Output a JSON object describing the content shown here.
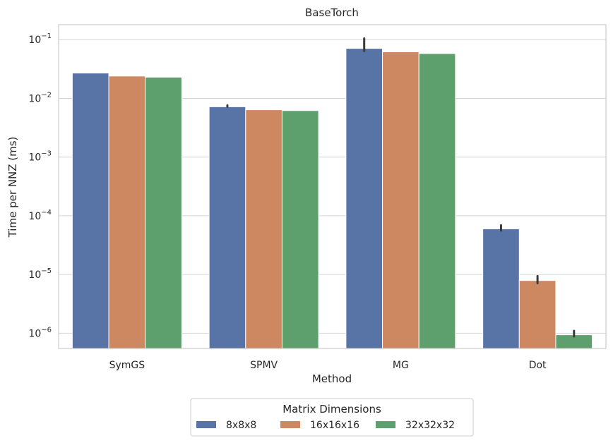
{
  "chart_data": {
    "type": "bar",
    "title": "BaseTorch",
    "xlabel": "Method",
    "ylabel": "Time per NNZ (ms)",
    "yscale": "log",
    "ylim": [
      5.5e-07,
      0.18
    ],
    "grid": "horizontal",
    "categories": [
      "SymGS",
      "SPMV",
      "MG",
      "Dot"
    ],
    "yticks": [
      {
        "value": 1e-06,
        "base": "10",
        "exp": "−6"
      },
      {
        "value": 1e-05,
        "base": "10",
        "exp": "−5"
      },
      {
        "value": 0.0001,
        "base": "10",
        "exp": "−4"
      },
      {
        "value": 0.001,
        "base": "10",
        "exp": "−3"
      },
      {
        "value": 0.01,
        "base": "10",
        "exp": "−2"
      },
      {
        "value": 0.1,
        "base": "10",
        "exp": "−1"
      }
    ],
    "legend": {
      "title": "Matrix Dimensions",
      "placement": "below",
      "columns": 3
    },
    "series": [
      {
        "name": "8x8x8",
        "color": "#5874a7",
        "values": [
          0.027,
          0.0072,
          0.071,
          6e-05
        ],
        "error_high": [
          null,
          0.0076,
          0.105,
          6.9e-05
        ],
        "error_low": [
          null,
          null,
          0.064,
          5.6e-05
        ]
      },
      {
        "name": "16x16x16",
        "color": "#cd8862",
        "values": [
          0.024,
          0.0064,
          0.062,
          7.9e-06
        ],
        "error_high": [
          null,
          null,
          null,
          9.4e-06
        ],
        "error_low": [
          null,
          null,
          null,
          7.1e-06
        ]
      },
      {
        "name": "32x32x32",
        "color": "#5d9f6d",
        "values": [
          0.023,
          0.0062,
          0.058,
          9.4e-07
        ],
        "error_high": [
          null,
          null,
          null,
          1.1e-06
        ],
        "error_low": [
          null,
          null,
          null,
          8.8e-07
        ]
      }
    ]
  }
}
